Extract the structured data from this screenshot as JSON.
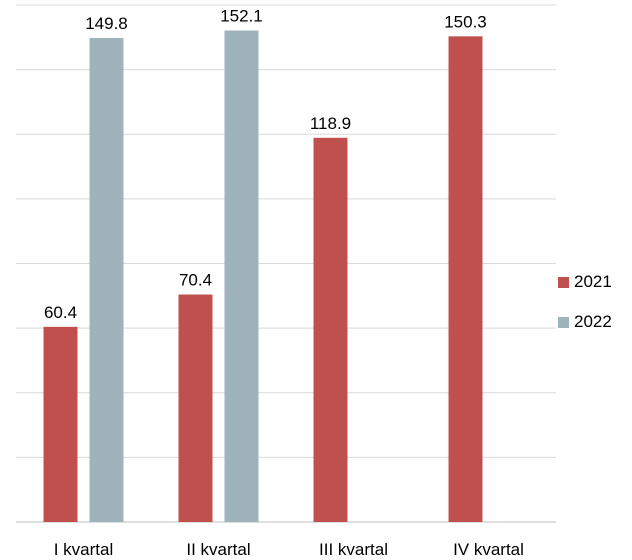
{
  "chart_data": {
    "type": "bar",
    "categories": [
      "I kvartal",
      "II kvartal",
      "III kvartal",
      "IV kvartal"
    ],
    "series": [
      {
        "name": "2021",
        "values": [
          60.4,
          70.4,
          118.9,
          150.3
        ],
        "color": "#c0504d"
      },
      {
        "name": "2022",
        "values": [
          149.8,
          152.1,
          null,
          null
        ],
        "color": "#9fb3bb"
      }
    ],
    "data_labels": [
      "60.4",
      "70.4",
      "118.9",
      "150.3",
      "149.8",
      "152.1"
    ],
    "ylim": [
      0,
      160
    ],
    "grid": true,
    "legend_position": "right",
    "title": "",
    "xlabel": "",
    "ylabel": ""
  }
}
